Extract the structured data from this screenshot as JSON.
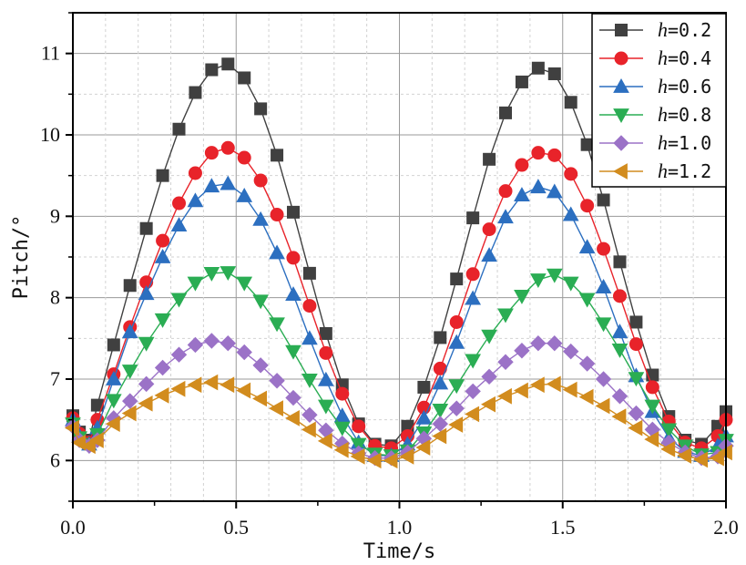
{
  "chart_data": {
    "type": "line",
    "xlabel": "Time/s",
    "ylabel": "Pitch/°",
    "xlim": [
      0.0,
      2.0
    ],
    "ylim": [
      5.5,
      11.5
    ],
    "xticks": [
      0.0,
      0.5,
      1.0,
      1.5,
      2.0
    ],
    "xtick_labels": [
      "0.0",
      "0.5",
      "1.0",
      "1.5",
      "2.0"
    ],
    "yticks": [
      6,
      7,
      8,
      9,
      10,
      11
    ],
    "ytick_labels": [
      "6",
      "7",
      "8",
      "9",
      "10",
      "11"
    ],
    "grid": true,
    "legend_position": "top-right",
    "legend_var": "h",
    "x": [
      0.0,
      0.02,
      0.05,
      0.075,
      0.125,
      0.175,
      0.225,
      0.275,
      0.325,
      0.375,
      0.425,
      0.475,
      0.525,
      0.575,
      0.625,
      0.675,
      0.725,
      0.775,
      0.825,
      0.875,
      0.925,
      0.975,
      1.025,
      1.075,
      1.125,
      1.175,
      1.225,
      1.275,
      1.325,
      1.375,
      1.425,
      1.475,
      1.525,
      1.575,
      1.625,
      1.675,
      1.725,
      1.775,
      1.825,
      1.875,
      1.925,
      1.975,
      2.0
    ],
    "series": [
      {
        "name": "=0.2",
        "color": "#404040",
        "marker": "square",
        "values": [
          6.55,
          6.35,
          6.25,
          6.68,
          7.42,
          8.15,
          8.85,
          9.5,
          10.07,
          10.52,
          10.8,
          10.87,
          10.7,
          10.32,
          9.75,
          9.05,
          8.3,
          7.56,
          6.93,
          6.45,
          6.2,
          6.18,
          6.42,
          6.9,
          7.51,
          8.23,
          8.98,
          9.7,
          10.27,
          10.65,
          10.82,
          10.75,
          10.4,
          9.88,
          9.2,
          8.44,
          7.7,
          7.05,
          6.54,
          6.25,
          6.2,
          6.42,
          6.6
        ]
      },
      {
        "name": "=0.4",
        "color": "#e8232a",
        "marker": "circle",
        "values": [
          6.52,
          6.33,
          6.22,
          6.5,
          7.06,
          7.64,
          8.19,
          8.7,
          9.16,
          9.53,
          9.78,
          9.84,
          9.72,
          9.44,
          9.02,
          8.49,
          7.9,
          7.32,
          6.82,
          6.42,
          6.18,
          6.15,
          6.3,
          6.65,
          7.13,
          7.7,
          8.29,
          8.84,
          9.31,
          9.63,
          9.78,
          9.75,
          9.52,
          9.13,
          8.6,
          8.02,
          7.43,
          6.9,
          6.48,
          6.22,
          6.15,
          6.3,
          6.5
        ]
      },
      {
        "name": "=0.6",
        "color": "#2c6fc0",
        "marker": "triangle-up",
        "values": [
          6.5,
          6.3,
          6.2,
          6.4,
          7.0,
          7.58,
          8.05,
          8.5,
          8.89,
          9.19,
          9.37,
          9.4,
          9.25,
          8.96,
          8.55,
          8.04,
          7.5,
          6.99,
          6.55,
          6.22,
          6.06,
          6.06,
          6.2,
          6.52,
          6.95,
          7.45,
          7.99,
          8.52,
          8.99,
          9.26,
          9.36,
          9.3,
          9.02,
          8.62,
          8.13,
          7.58,
          7.04,
          6.6,
          6.28,
          6.11,
          6.06,
          6.18,
          6.3
        ]
      },
      {
        "name": "=0.8",
        "color": "#2aad53",
        "marker": "triangle-down",
        "values": [
          6.45,
          6.28,
          6.2,
          6.32,
          6.74,
          7.1,
          7.44,
          7.73,
          7.98,
          8.18,
          8.3,
          8.31,
          8.18,
          7.96,
          7.68,
          7.34,
          6.99,
          6.67,
          6.4,
          6.2,
          6.08,
          6.06,
          6.12,
          6.34,
          6.62,
          6.92,
          7.23,
          7.53,
          7.79,
          8.02,
          8.22,
          8.28,
          8.18,
          7.98,
          7.68,
          7.36,
          7.01,
          6.67,
          6.38,
          6.18,
          6.07,
          6.1,
          6.25
        ]
      },
      {
        "name": "=1.0",
        "color": "#9b72c7",
        "marker": "diamond",
        "values": [
          6.42,
          6.25,
          6.18,
          6.25,
          6.52,
          6.73,
          6.94,
          7.14,
          7.3,
          7.42,
          7.47,
          7.44,
          7.33,
          7.17,
          6.98,
          6.77,
          6.56,
          6.37,
          6.21,
          6.09,
          6.03,
          6.03,
          6.1,
          6.27,
          6.45,
          6.64,
          6.85,
          7.03,
          7.21,
          7.35,
          7.44,
          7.44,
          7.34,
          7.19,
          7.0,
          6.79,
          6.58,
          6.38,
          6.22,
          6.1,
          6.03,
          6.05,
          6.18
        ]
      },
      {
        "name": "=1.2",
        "color": "#d28c1e",
        "marker": "triangle-left",
        "values": [
          6.4,
          6.22,
          6.18,
          6.25,
          6.45,
          6.58,
          6.7,
          6.8,
          6.88,
          6.93,
          6.96,
          6.93,
          6.86,
          6.76,
          6.64,
          6.52,
          6.38,
          6.24,
          6.13,
          6.05,
          6.0,
          6.0,
          6.05,
          6.16,
          6.3,
          6.44,
          6.57,
          6.69,
          6.79,
          6.86,
          6.93,
          6.94,
          6.87,
          6.78,
          6.67,
          6.54,
          6.4,
          6.26,
          6.14,
          6.06,
          6.01,
          6.03,
          6.1
        ]
      }
    ]
  }
}
